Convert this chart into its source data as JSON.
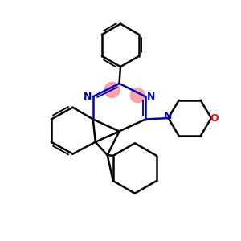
{
  "background_color": "#ffffff",
  "bond_color": "#000000",
  "nitrogen_color": "#0000cc",
  "oxygen_color": "#ff0000",
  "highlight_color": "#ff8888",
  "lw": 1.8,
  "fig_w": 3.0,
  "fig_h": 3.0,
  "dpi": 100,
  "xlim": [
    0,
    10
  ],
  "ylim": [
    0,
    10
  ]
}
